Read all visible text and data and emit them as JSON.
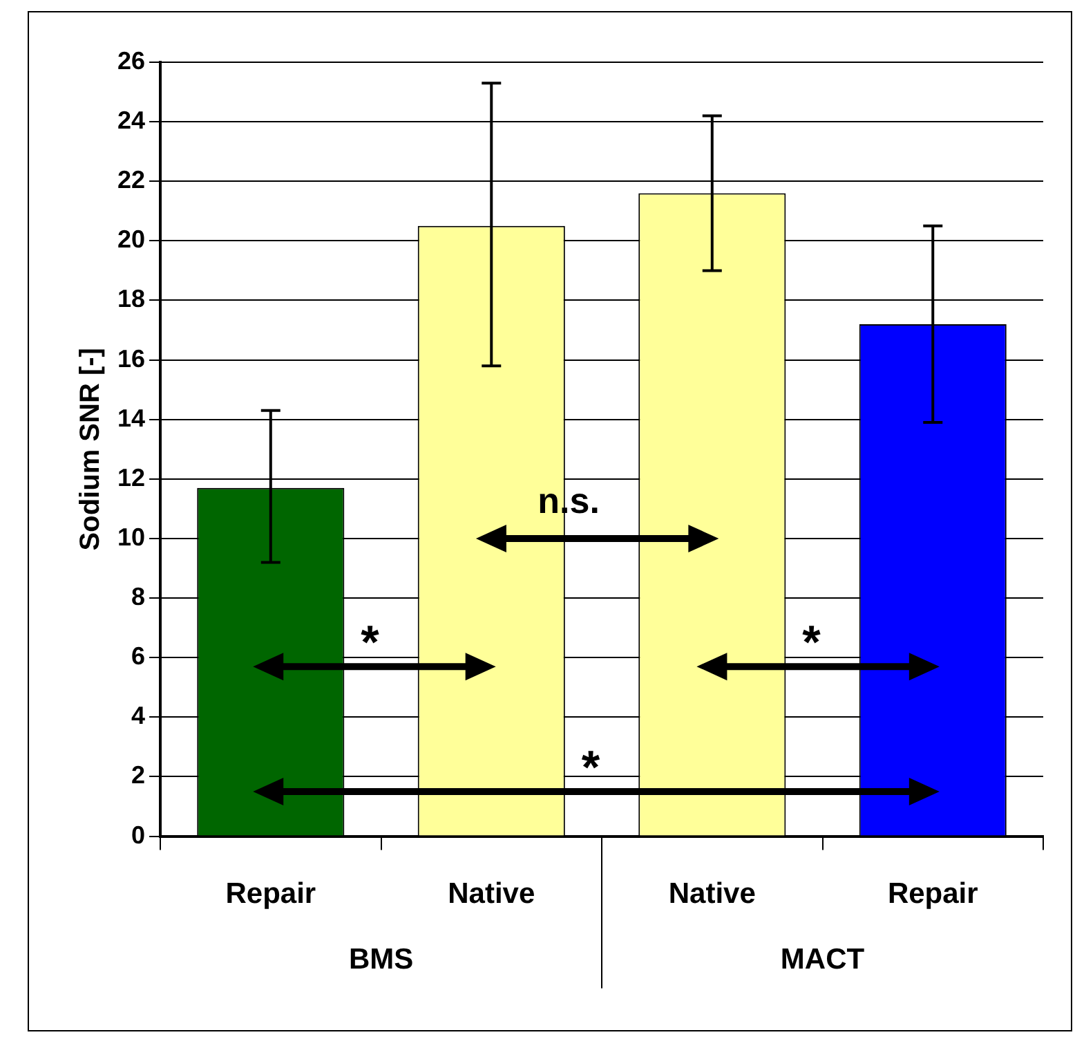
{
  "chart_data": {
    "type": "bar",
    "ylabel": "Sodium SNR [-]",
    "categories": [
      "Repair",
      "Native",
      "Native",
      "Repair"
    ],
    "values": [
      11.7,
      20.5,
      21.6,
      17.2
    ],
    "colors": [
      "#006600",
      "#ffff99",
      "#ffff99",
      "#0000ff"
    ],
    "errors": [
      [
        9.2,
        14.3
      ],
      [
        15.8,
        25.3
      ],
      [
        19.0,
        24.2
      ],
      [
        13.9,
        20.5
      ]
    ],
    "ylim": [
      0,
      26
    ],
    "yticks": [
      0,
      2,
      4,
      6,
      8,
      10,
      12,
      14,
      16,
      18,
      20,
      22,
      24,
      26
    ],
    "grid": "y",
    "legend": false,
    "annotations": [
      "BMS",
      "MACT",
      "n.s.",
      "*",
      "*",
      "*"
    ]
  }
}
